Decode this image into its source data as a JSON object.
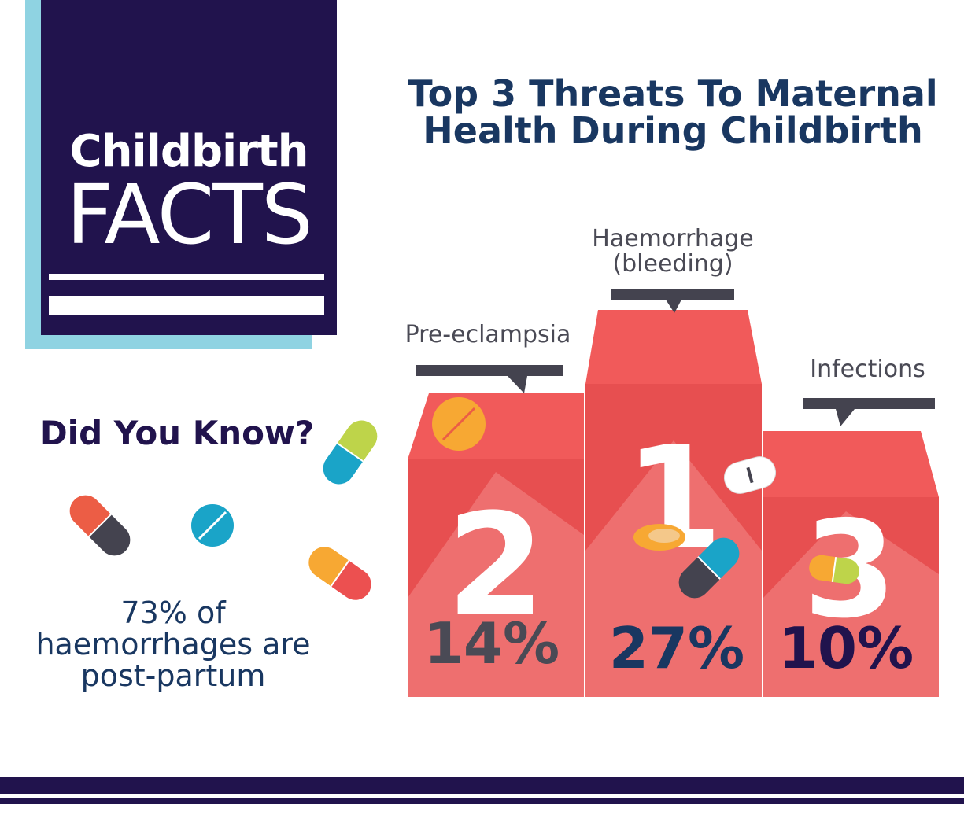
{
  "badge": {
    "line1": "Childbirth",
    "line2": "FACTS"
  },
  "headline": {
    "line1": "Top 3 Threats To Maternal",
    "line2": "Health During Childbirth"
  },
  "did_you_know": {
    "heading": "Did You Know?",
    "fact_line1": "73% of",
    "fact_line2": "haemorrhages are",
    "fact_line3": "post-partum"
  },
  "podium": [
    {
      "rank": "2",
      "label_line1": "Pre-eclampsia",
      "label_line2": "",
      "percent": "14%",
      "percent_color": "#4a4a55"
    },
    {
      "rank": "1",
      "label_line1": "Haemorrhage",
      "label_line2": "(bleeding)",
      "percent": "27%",
      "percent_color": "#193761"
    },
    {
      "rank": "3",
      "label_line1": "Infections",
      "label_line2": "",
      "percent": "10%",
      "percent_color": "#21134d"
    }
  ],
  "colors": {
    "navy": "#21134d",
    "light_blue": "#8fd3e2",
    "podium_top": "#f15a5a",
    "podium_front": "#e74f50",
    "podium_beam": "#ee7676",
    "label_bar": "#44434f"
  },
  "icons": [
    "pill-capsule-green-blue-icon",
    "pill-capsule-orange-gray-icon",
    "pill-tablet-blue-icon",
    "pill-capsule-orange-red-icon",
    "pill-tablet-orange-icon",
    "pill-capsule-white-icon",
    "pill-oval-orange-icon",
    "pill-capsule-blue-gray-icon",
    "pill-capsule-orange-green-icon"
  ]
}
